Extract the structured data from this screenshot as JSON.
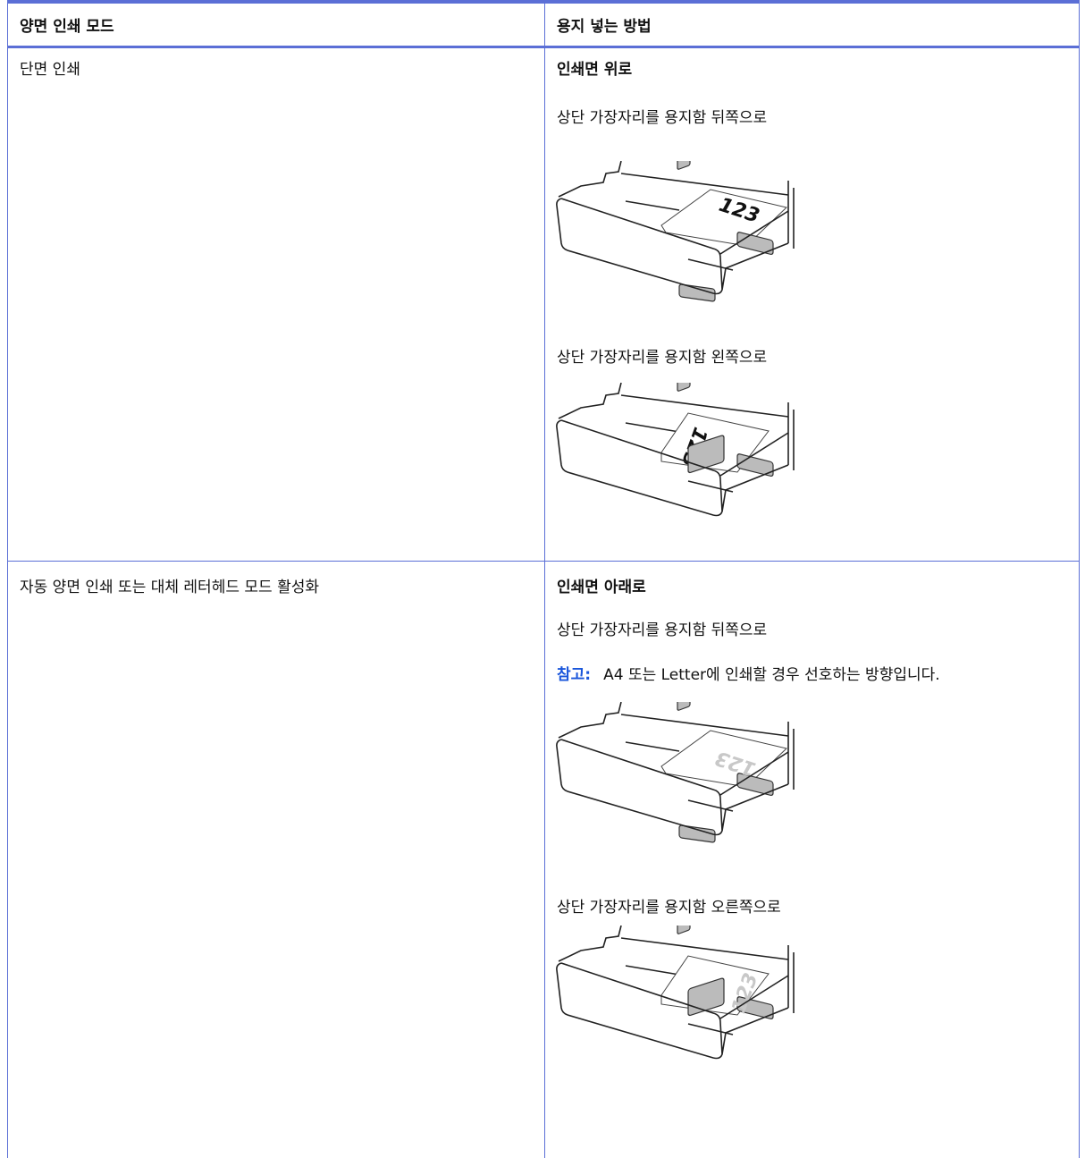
{
  "table": {
    "header": [
      "양면 인쇄 모드",
      "용지 넣는 방법"
    ],
    "rows": [
      {
        "mode": "단면 인쇄",
        "orientation": "인쇄면 위로",
        "items": [
          {
            "text": "상단 가장자리를 용지함 뒤쪽으로",
            "figure_label": "123"
          },
          {
            "text": "상단 가장자리를 용지함 왼쪽으로",
            "figure_label": "123"
          }
        ]
      },
      {
        "mode": "자동 양면 인쇄 또는 대체 레터헤드 모드 활성화",
        "orientation": "인쇄면 아래로",
        "items": [
          {
            "text": "상단 가장자리를 용지함 뒤쪽으로",
            "note_label": "참고:",
            "note": "A4 또는 Letter에 인쇄할 경우 선호하는 방향입니다.",
            "figure_label": "123"
          },
          {
            "text": "상단 가장자리를 용지함 오른쪽으로",
            "figure_label": "123"
          }
        ]
      }
    ]
  }
}
